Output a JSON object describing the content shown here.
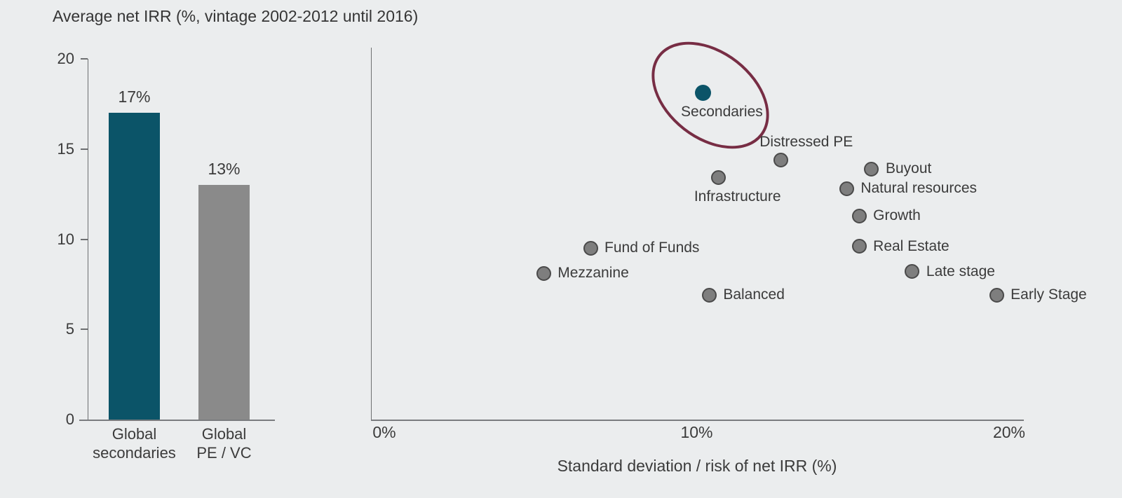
{
  "title": "Average net IRR (%, vintage 2002-2012 until 2016)",
  "colors": {
    "background": "#ebedee",
    "teal": "#0b5468",
    "bar_gray": "#8a8a8a",
    "dot_gray_fill": "#7e7e7e",
    "dot_gray_stroke": "#4a4a4a",
    "ellipse_stroke": "#772d44",
    "text": "#3b3b3b",
    "axis": "#6d6f71"
  },
  "chart_data": [
    {
      "type": "bar",
      "title": "Average net IRR (%, vintage 2002-2012 until 2016)",
      "categories": [
        "Global secondaries",
        "Global PE / VC"
      ],
      "values": [
        17,
        13
      ],
      "value_labels": [
        "17%",
        "13%"
      ],
      "bar_colors": [
        "#0b5468",
        "#8a8a8a"
      ],
      "ylim": [
        0,
        20
      ],
      "yticks": [
        0,
        5,
        10,
        15,
        20
      ],
      "grid": false,
      "legend": "none"
    },
    {
      "type": "scatter",
      "xlabel": "Standard deviation / risk of net IRR (%)",
      "xlim": [
        0,
        20
      ],
      "xticks": [
        0,
        10,
        20
      ],
      "xtick_labels": [
        "0%",
        "10%",
        "20%"
      ],
      "ylim": [
        0,
        20
      ],
      "grid": false,
      "points": [
        {
          "name": "Secondaries",
          "x": 10.2,
          "y": 18.1,
          "color": "#0b5468",
          "label_pos": "below",
          "highlighted": true
        },
        {
          "name": "Distressed PE",
          "x": 12.7,
          "y": 14.4,
          "color": "#7e7e7e",
          "label_pos": "above",
          "highlighted": false
        },
        {
          "name": "Infrastructure",
          "x": 10.7,
          "y": 13.4,
          "color": "#7e7e7e",
          "label_pos": "below",
          "highlighted": false
        },
        {
          "name": "Buyout",
          "x": 15.6,
          "y": 13.9,
          "color": "#7e7e7e",
          "label_pos": "right",
          "highlighted": false
        },
        {
          "name": "Natural resources",
          "x": 14.8,
          "y": 12.8,
          "color": "#7e7e7e",
          "label_pos": "right",
          "highlighted": false
        },
        {
          "name": "Growth",
          "x": 15.2,
          "y": 11.3,
          "color": "#7e7e7e",
          "label_pos": "right",
          "highlighted": false
        },
        {
          "name": "Real Estate",
          "x": 15.2,
          "y": 9.6,
          "color": "#7e7e7e",
          "label_pos": "right",
          "highlighted": false
        },
        {
          "name": "Fund of Funds",
          "x": 6.6,
          "y": 9.5,
          "color": "#7e7e7e",
          "label_pos": "right",
          "highlighted": false
        },
        {
          "name": "Mezzanine",
          "x": 5.1,
          "y": 8.1,
          "color": "#7e7e7e",
          "label_pos": "right",
          "highlighted": false
        },
        {
          "name": "Balanced",
          "x": 10.4,
          "y": 6.9,
          "color": "#7e7e7e",
          "label_pos": "right",
          "highlighted": false
        },
        {
          "name": "Late stage",
          "x": 16.9,
          "y": 8.2,
          "color": "#7e7e7e",
          "label_pos": "right",
          "highlighted": false
        },
        {
          "name": "Early Stage",
          "x": 19.6,
          "y": 6.9,
          "color": "#7e7e7e",
          "label_pos": "right",
          "highlighted": false
        }
      ],
      "annotation": {
        "shape": "ellipse",
        "target": "Secondaries",
        "color": "#772d44"
      }
    }
  ]
}
